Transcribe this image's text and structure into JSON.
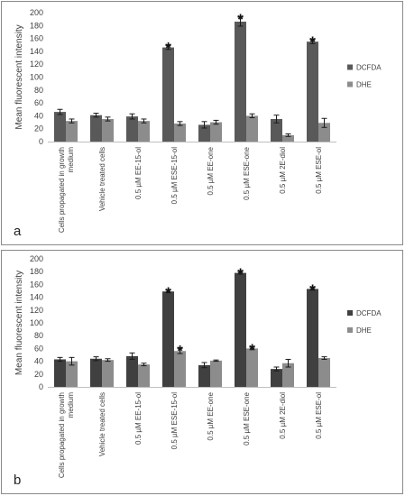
{
  "chart_data": [
    {
      "type": "bar",
      "panel_label": "a",
      "ylabel": "Mean fluorescent intensity",
      "ylim": [
        0,
        200
      ],
      "ytick_step": 20,
      "legend_position": "right",
      "categories": [
        "Cells propagated in growth medium",
        "Vehicle treated cells",
        "0.5 µM EE-15-ol",
        "0.5 µM ESE-15-ol",
        "0.5 µM EE-one",
        "0.5 µM ESE-one",
        "0.5 µM 2E-diol",
        "0.5 µM ESE-ol"
      ],
      "series": [
        {
          "name": "DCFDA",
          "color": "#595959",
          "values": [
            46,
            41,
            39,
            146,
            26,
            186,
            35,
            155
          ],
          "errors": [
            4,
            3,
            4,
            3,
            5,
            7,
            6,
            3
          ],
          "significant": [
            false,
            false,
            false,
            true,
            false,
            true,
            false,
            true
          ]
        },
        {
          "name": "DHE",
          "color": "#8c8c8c",
          "values": [
            32,
            35,
            32,
            28,
            30,
            40,
            10,
            29
          ],
          "errors": [
            3,
            3,
            3,
            3,
            3,
            3,
            2,
            7
          ],
          "significant": [
            false,
            false,
            false,
            false,
            false,
            false,
            false,
            false
          ]
        }
      ]
    },
    {
      "type": "bar",
      "panel_label": "b",
      "ylabel": "Mean fluorescent intensity",
      "ylim": [
        0,
        200
      ],
      "ytick_step": 20,
      "legend_position": "right",
      "categories": [
        "Cells propagated in growth medium",
        "Vehicle treated cells",
        "0.5 µM EE-15-ol",
        "0.5 µM ESE-15-ol",
        "0.5 µM EE-one",
        "0.5 µM ESE-one",
        "0.5 µM 2E-diol",
        "0.5 µM ESE-ol"
      ],
      "series": [
        {
          "name": "DCFDA",
          "color": "#404040",
          "values": [
            43,
            44,
            48,
            149,
            34,
            178,
            28,
            153
          ],
          "errors": [
            3,
            3,
            5,
            2,
            4,
            2,
            3,
            2
          ],
          "significant": [
            false,
            false,
            false,
            true,
            false,
            true,
            false,
            true
          ]
        },
        {
          "name": "DHE",
          "color": "#8c8c8c",
          "values": [
            40,
            42,
            35,
            56,
            41,
            60,
            37,
            45
          ],
          "errors": [
            6,
            2,
            2,
            4,
            1,
            2,
            6,
            2
          ],
          "significant": [
            false,
            false,
            false,
            true,
            false,
            true,
            false,
            false
          ]
        }
      ]
    }
  ]
}
